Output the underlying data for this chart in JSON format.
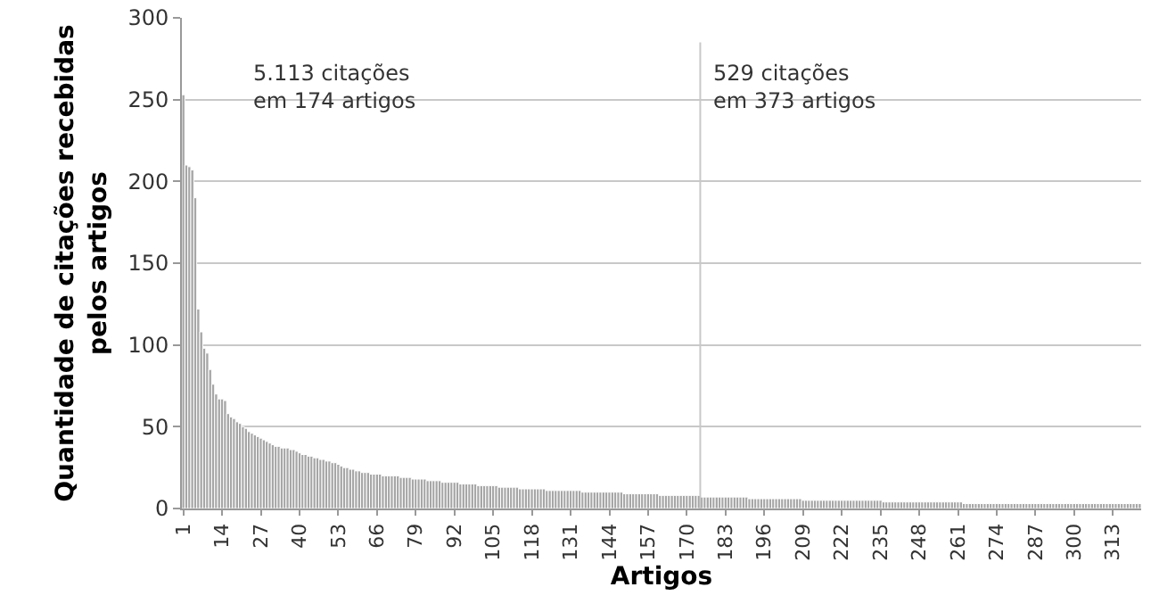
{
  "chart_data": {
    "type": "bar",
    "xlabel": "Artigos",
    "ylabel": "Quantidade de citações recebidas\npelos artigos",
    "annotations": [
      "5.113 citações\nem 174 artigos",
      "529 citações\nem 373 artigos"
    ],
    "x": [
      1,
      2,
      3,
      4,
      5,
      6,
      7,
      8,
      9,
      10,
      11,
      12,
      13,
      14,
      15,
      16,
      17,
      18,
      19,
      20,
      21,
      22,
      23,
      24,
      25,
      26,
      27,
      28,
      29,
      30,
      31,
      32,
      33,
      34,
      35,
      36,
      37,
      38,
      39,
      40,
      41,
      42,
      43,
      44,
      45,
      46,
      47,
      48,
      49,
      50,
      51,
      52,
      53,
      54,
      55,
      56,
      57,
      58,
      59,
      60,
      61,
      62,
      63,
      64,
      65,
      66,
      67,
      68,
      69,
      70,
      71,
      72,
      73,
      74,
      75,
      76,
      77,
      78,
      79,
      80,
      81,
      82,
      83,
      84,
      85,
      86,
      87,
      88,
      89,
      90,
      91,
      92,
      93,
      94,
      95,
      96,
      97,
      98,
      99,
      100,
      101,
      102,
      103,
      104,
      105,
      106,
      107,
      108,
      109,
      110,
      111,
      112,
      113,
      114,
      115,
      116,
      117,
      118,
      119,
      120,
      121,
      122,
      123,
      124,
      125,
      126,
      127,
      128,
      129,
      130,
      131,
      132,
      133,
      134,
      135,
      136,
      137,
      138,
      139,
      140,
      141,
      142,
      143,
      144,
      145,
      146,
      147,
      148,
      149,
      150,
      151,
      152,
      153,
      154,
      155,
      156,
      157,
      158,
      159,
      160,
      161,
      162,
      163,
      164,
      165,
      166,
      167,
      168,
      169,
      170,
      171,
      172,
      173,
      174,
      175,
      176,
      177,
      178,
      179,
      180,
      181,
      182,
      183,
      184,
      185,
      186,
      187,
      188,
      189,
      190,
      191,
      192,
      193,
      194,
      195,
      196,
      197,
      198,
      199,
      200,
      201,
      202,
      203,
      204,
      205,
      206,
      207,
      208,
      209,
      210,
      211,
      212,
      213,
      214,
      215,
      216,
      217,
      218,
      219,
      220,
      221,
      222,
      223,
      224,
      225,
      226,
      227,
      228,
      229,
      230,
      231,
      232,
      233,
      234,
      235,
      236,
      237,
      238,
      239,
      240,
      241,
      242,
      243,
      244,
      245,
      246,
      247,
      248,
      249,
      250,
      251,
      252,
      253,
      254,
      255,
      256,
      257,
      258,
      259,
      260,
      261,
      262,
      263,
      264,
      265,
      266,
      267,
      268,
      269,
      270,
      271,
      272,
      273,
      274,
      275,
      276,
      277,
      278,
      279,
      280,
      281,
      282,
      283,
      284,
      285,
      286,
      287,
      288,
      289,
      290,
      291,
      292,
      293,
      294,
      295,
      296,
      297,
      298,
      299,
      300,
      301,
      302,
      303,
      304,
      305,
      306,
      307,
      308,
      309,
      310,
      311,
      312,
      313,
      314,
      315,
      316,
      317,
      318,
      319,
      320,
      321,
      322
    ],
    "values": [
      253,
      210,
      209,
      207,
      190,
      122,
      108,
      98,
      95,
      85,
      76,
      70,
      67,
      67,
      66,
      58,
      56,
      55,
      53,
      52,
      50,
      49,
      47,
      46,
      45,
      44,
      43,
      42,
      41,
      40,
      39,
      38,
      38,
      37,
      37,
      37,
      36,
      36,
      35,
      34,
      33,
      33,
      32,
      32,
      31,
      31,
      30,
      30,
      29,
      29,
      28,
      28,
      27,
      26,
      25,
      25,
      24,
      24,
      23,
      23,
      22,
      22,
      22,
      21,
      21,
      21,
      21,
      20,
      20,
      20,
      20,
      20,
      20,
      19,
      19,
      19,
      19,
      18,
      18,
      18,
      18,
      18,
      17,
      17,
      17,
      17,
      17,
      16,
      16,
      16,
      16,
      16,
      16,
      15,
      15,
      15,
      15,
      15,
      15,
      14,
      14,
      14,
      14,
      14,
      14,
      14,
      13,
      13,
      13,
      13,
      13,
      13,
      13,
      12,
      12,
      12,
      12,
      12,
      12,
      12,
      12,
      12,
      11,
      11,
      11,
      11,
      11,
      11,
      11,
      11,
      11,
      11,
      11,
      11,
      10,
      10,
      10,
      10,
      10,
      10,
      10,
      10,
      10,
      10,
      10,
      10,
      10,
      10,
      9,
      9,
      9,
      9,
      9,
      9,
      9,
      9,
      9,
      9,
      9,
      9,
      8,
      8,
      8,
      8,
      8,
      8,
      8,
      8,
      8,
      8,
      8,
      8,
      8,
      8,
      7,
      7,
      7,
      7,
      7,
      7,
      7,
      7,
      7,
      7,
      7,
      7,
      7,
      7,
      7,
      7,
      6,
      6,
      6,
      6,
      6,
      6,
      6,
      6,
      6,
      6,
      6,
      6,
      6,
      6,
      6,
      6,
      6,
      6,
      5,
      5,
      5,
      5,
      5,
      5,
      5,
      5,
      5,
      5,
      5,
      5,
      5,
      5,
      5,
      5,
      5,
      5,
      5,
      5,
      5,
      5,
      5,
      5,
      5,
      5,
      5,
      4,
      4,
      4,
      4,
      4,
      4,
      4,
      4,
      4,
      4,
      4,
      4,
      4,
      4,
      4,
      4,
      4,
      4,
      4,
      4,
      4,
      4,
      4,
      4,
      4,
      4,
      4,
      3,
      3,
      3,
      3,
      3,
      3,
      3,
      3,
      3,
      3,
      3,
      3,
      3,
      3,
      3,
      3,
      3,
      3,
      3,
      3,
      3,
      3,
      3,
      3,
      3,
      3,
      3,
      3,
      3,
      3,
      3,
      3,
      3,
      3,
      3,
      3,
      3,
      3,
      3,
      3,
      3,
      3,
      3,
      3,
      3,
      3,
      3,
      3,
      3,
      3,
      3,
      3,
      3,
      3,
      3,
      3,
      3,
      3,
      3,
      3
    ],
    "color": "#a6a6a6",
    "xlim": [
      0.5,
      322.5
    ],
    "xticks": [
      1,
      14,
      27,
      40,
      53,
      66,
      79,
      92,
      105,
      118,
      131,
      144,
      157,
      170,
      183,
      196,
      209,
      222,
      235,
      248,
      261,
      274,
      287,
      300,
      313
    ],
    "ylim": [
      0,
      300
    ],
    "yticks": [
      0,
      50,
      100,
      150,
      200,
      250,
      300
    ],
    "ref_lines": [
      {
        "axis": "x",
        "value": 174.5,
        "color": "#c8c8c8"
      }
    ],
    "grid": "y",
    "legend": false
  }
}
